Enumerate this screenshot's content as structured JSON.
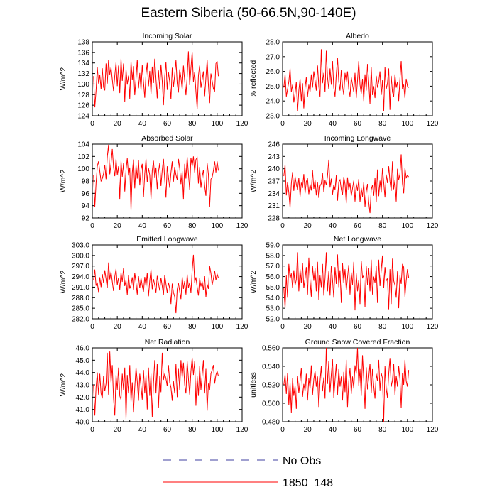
{
  "title": "Eastern Siberia (50-66.5N,90-140E)",
  "colors": {
    "obs": "#4040a0",
    "model": "#ff0000",
    "axis": "#000000"
  },
  "legend": [
    {
      "label": "No Obs",
      "style": "dashed",
      "color": "#4040a0"
    },
    {
      "label": "1850_148",
      "style": "solid",
      "color": "#ff0000"
    }
  ],
  "chart_data": [
    {
      "type": "line",
      "title": "Incoming Solar",
      "ylabel": "W/m^2",
      "xlim": [
        0,
        120
      ],
      "xticks": [
        0,
        20,
        40,
        60,
        80,
        100,
        120
      ],
      "ylim": [
        124,
        138
      ],
      "yticks": [
        "124",
        "126",
        "128",
        "130",
        "132",
        "134",
        "136",
        "138"
      ],
      "series": [
        {
          "name": "1850_148",
          "values": [
            131.5,
            125.6,
            128.7,
            133.2,
            130.1,
            131.8,
            129.0,
            133.0,
            129.4,
            128.8,
            133.9,
            130.1,
            134.6,
            131.8,
            133.2,
            130.9,
            128.7,
            131.6,
            134.1,
            129.6,
            133.5,
            128.3,
            134.8,
            130.6,
            133.9,
            126.7,
            132.8,
            129.9,
            131.6,
            127.2,
            134.3,
            130.8,
            133.4,
            127.9,
            131.0,
            134.6,
            129.2,
            132.1,
            128.8,
            133.6,
            130.4,
            127.4,
            131.9,
            134.0,
            129.6,
            132.5,
            128.1,
            133.3,
            130.2,
            134.8,
            131.0,
            127.3,
            132.6,
            129.1,
            133.7,
            130.6,
            126.0,
            131.4,
            134.2,
            128.9,
            132.3,
            130.4,
            127.1,
            133.1,
            129.4,
            131.8,
            134.5,
            130.1,
            128.4,
            132.8,
            131.2,
            129.0,
            133.5,
            130.6,
            127.9,
            131.4,
            136.2,
            129.8,
            133.0,
            136.1,
            130.4,
            132.3,
            128.6,
            125.3,
            131.6,
            133.5,
            129.3,
            130.9,
            132.4,
            127.7,
            131.2,
            134.6,
            129.8,
            126.4,
            132.0,
            130.6,
            129.1,
            128.6,
            133.9,
            134.2,
            131.5
          ]
        }
      ]
    },
    {
      "type": "line",
      "title": "Albedo",
      "ylabel": "% reflected",
      "xlim": [
        0,
        120
      ],
      "xticks": [
        0,
        20,
        40,
        60,
        80,
        100,
        120
      ],
      "ylim": [
        23.0,
        28.0
      ],
      "yticks": [
        "23.0",
        "24.0",
        "25.0",
        "26.0",
        "27.0",
        "28.0"
      ],
      "series": [
        {
          "name": "1850_148",
          "values": [
            24.9,
            25.8,
            24.3,
            24.8,
            25.3,
            26.2,
            24.6,
            25.1,
            23.9,
            24.5,
            25.3,
            23.3,
            24.7,
            25.5,
            24.0,
            25.2,
            23.5,
            24.9,
            25.6,
            24.3,
            25.1,
            24.6,
            25.8,
            24.9,
            26.0,
            25.4,
            24.7,
            26.4,
            25.0,
            24.3,
            27.5,
            25.2,
            25.9,
            24.6,
            27.4,
            25.6,
            24.8,
            26.2,
            25.1,
            26.7,
            24.9,
            24.3,
            25.8,
            26.9,
            25.3,
            24.7,
            26.1,
            25.0,
            24.4,
            25.9,
            25.3,
            26.0,
            24.8,
            24.3,
            25.6,
            25.1,
            24.6,
            25.9,
            24.2,
            25.4,
            26.7,
            25.1,
            24.5,
            25.5,
            24.0,
            25.8,
            24.7,
            26.5,
            25.3,
            23.8,
            26.3,
            24.4,
            25.0,
            24.2,
            25.7,
            24.9,
            25.3,
            26.0,
            24.4,
            25.4,
            23.3,
            26.3,
            24.8,
            25.2,
            26.2,
            23.4,
            25.7,
            24.6,
            24.3,
            25.8,
            24.9,
            25.3,
            24.0,
            25.5,
            26.7,
            24.8,
            25.1,
            24.2,
            25.5,
            25.0,
            24.9
          ]
        }
      ]
    },
    {
      "type": "line",
      "title": "Absorbed Solar",
      "ylabel": "W/m^2",
      "xlim": [
        0,
        120
      ],
      "xticks": [
        0,
        20,
        40,
        60,
        80,
        100,
        120
      ],
      "ylim": [
        92,
        104
      ],
      "yticks": [
        "92",
        "94",
        "96",
        "98",
        "100",
        "102",
        "104"
      ],
      "series": [
        {
          "name": "1850_148",
          "values": [
            99.0,
            93.8,
            97.6,
            100.4,
            101.2,
            99.6,
            98.0,
            98.4,
            99.2,
            100.6,
            98.3,
            101.9,
            103.9,
            99.1,
            100.8,
            103.2,
            100.3,
            98.8,
            101.6,
            99.0,
            100.4,
            95.1,
            101.3,
            98.7,
            100.9,
            96.3,
            99.8,
            101.7,
            98.9,
            100.2,
            93.2,
            99.4,
            101.5,
            96.8,
            100.6,
            98.4,
            101.4,
            97.3,
            99.9,
            100.8,
            95.4,
            99.2,
            101.6,
            97.8,
            100.1,
            99.0,
            95.1,
            99.7,
            101.3,
            98.6,
            100.2,
            96.7,
            99.5,
            100.9,
            97.2,
            99.8,
            101.6,
            98.3,
            95.3,
            100.4,
            98.6,
            96.9,
            99.4,
            101.2,
            97.9,
            100.3,
            99.0,
            98.2,
            101.6,
            100.1,
            97.5,
            99.6,
            95.1,
            100.8,
            98.4,
            101.9,
            99.2,
            96.6,
            101.8,
            100.4,
            102.0,
            99.4,
            101.5,
            101.8,
            97.6,
            100.3,
            96.9,
            98.7,
            99.8,
            97.2,
            95.6,
            100.9,
            99.1,
            93.8,
            98.3,
            98.6,
            99.7,
            101.2,
            99.4,
            101.2,
            99.7
          ]
        }
      ]
    },
    {
      "type": "line",
      "title": "Incoming Longwave",
      "ylabel": "W/m^2",
      "xlim": [
        0,
        120
      ],
      "xticks": [
        0,
        20,
        40,
        60,
        80,
        100,
        120
      ],
      "ylim": [
        228,
        246
      ],
      "yticks": [
        "228",
        "231",
        "234",
        "237",
        "240",
        "243",
        "246"
      ],
      "series": [
        {
          "name": "1850_148",
          "values": [
            238.2,
            241.0,
            233.5,
            236.8,
            234.2,
            230.5,
            236.4,
            239.2,
            234.6,
            238.1,
            236.2,
            234.9,
            237.8,
            233.2,
            236.6,
            235.3,
            238.7,
            234.0,
            236.9,
            237.5,
            233.8,
            236.2,
            234.7,
            239.6,
            235.1,
            237.3,
            233.5,
            236.7,
            232.9,
            235.8,
            236.4,
            238.9,
            234.3,
            237.2,
            236.0,
            238.3,
            242.2,
            235.4,
            237.6,
            233.7,
            236.1,
            234.9,
            238.4,
            232.2,
            236.8,
            237.3,
            235.0,
            233.6,
            238.0,
            236.3,
            231.6,
            237.9,
            234.8,
            236.5,
            233.4,
            235.2,
            237.1,
            232.0,
            236.4,
            234.6,
            237.5,
            231.9,
            235.3,
            233.2,
            236.7,
            230.7,
            234.4,
            236.3,
            231.7,
            229.2,
            234.9,
            236.0,
            233.4,
            237.8,
            231.8,
            239.8,
            233.3,
            237.1,
            234.2,
            240.1,
            236.7,
            233.0,
            238.6,
            236.5,
            240.6,
            236.9,
            234.6,
            241.8,
            235.0,
            237.2,
            232.0,
            240.0,
            237.3,
            238.7,
            243.5,
            236.4,
            234.0,
            240.2,
            237.8,
            238.4,
            238.0
          ]
        }
      ]
    },
    {
      "type": "line",
      "title": "Emitted Longwave",
      "ylabel": "W/m^2",
      "xlim": [
        0,
        120
      ],
      "xticks": [
        0,
        20,
        40,
        60,
        80,
        100,
        120
      ],
      "ylim": [
        282.0,
        303.0
      ],
      "yticks": [
        "282.0",
        "285.0",
        "288.0",
        "291.0",
        "294.0",
        "297.0",
        "300.0",
        "303.0"
      ],
      "series": [
        {
          "name": "1850_148",
          "values": [
            293.1,
            296.0,
            291.4,
            292.3,
            289.6,
            293.8,
            291.0,
            294.7,
            292.2,
            295.8,
            293.3,
            290.7,
            298.0,
            293.2,
            295.4,
            292.6,
            289.9,
            294.0,
            296.2,
            291.6,
            293.7,
            290.2,
            295.2,
            292.5,
            296.4,
            291.3,
            293.0,
            288.8,
            294.4,
            290.6,
            291.6,
            293.8,
            290.3,
            295.0,
            292.3,
            288.9,
            294.1,
            290.7,
            293.6,
            291.4,
            289.7,
            293.9,
            291.2,
            295.1,
            288.4,
            292.8,
            296.0,
            290.4,
            293.3,
            291.6,
            289.5,
            294.2,
            292.1,
            290.0,
            293.7,
            291.3,
            288.8,
            294.5,
            291.9,
            289.4,
            292.3,
            290.6,
            286.2,
            292.0,
            289.5,
            288.3,
            283.6,
            290.4,
            292.1,
            289.8,
            287.6,
            293.9,
            290.5,
            292.7,
            288.9,
            294.6,
            290.8,
            292.3,
            289.4,
            295.8,
            300.2,
            292.3,
            293.8,
            291.0,
            288.6,
            293.5,
            291.2,
            292.6,
            290.1,
            294.1,
            288.2,
            291.8,
            290.5,
            297.0,
            295.0,
            291.6,
            293.4,
            295.7,
            293.0,
            294.7,
            293.6
          ]
        }
      ]
    },
    {
      "type": "line",
      "title": "Net Longwave",
      "ylabel": "W/m^2",
      "xlim": [
        0,
        120
      ],
      "xticks": [
        0,
        20,
        40,
        60,
        80,
        100,
        120
      ],
      "ylim": [
        52.0,
        59.0
      ],
      "yticks": [
        "52.0",
        "53.0",
        "54.0",
        "55.0",
        "56.0",
        "57.0",
        "58.0",
        "59.0"
      ],
      "series": [
        {
          "name": "1850_148",
          "values": [
            54.9,
            53.0,
            56.1,
            54.0,
            57.2,
            55.8,
            56.3,
            54.9,
            56.6,
            55.2,
            55.7,
            58.3,
            54.6,
            56.7,
            55.4,
            57.3,
            54.9,
            55.8,
            56.9,
            54.3,
            57.8,
            55.6,
            54.1,
            57.0,
            55.6,
            56.8,
            54.6,
            57.4,
            53.8,
            56.1,
            55.0,
            57.2,
            54.2,
            55.8,
            58.3,
            54.6,
            56.5,
            54.2,
            57.0,
            55.7,
            54.0,
            56.9,
            55.3,
            58.1,
            55.0,
            56.6,
            53.5,
            57.3,
            55.4,
            56.7,
            54.7,
            55.9,
            57.1,
            54.3,
            56.4,
            55.2,
            57.4,
            52.8,
            56.3,
            54.6,
            55.7,
            53.4,
            57.5,
            55.9,
            56.1,
            53.1,
            57.0,
            55.2,
            56.8,
            54.6,
            57.6,
            54.3,
            56.0,
            55.4,
            57.0,
            53.5,
            57.6,
            55.1,
            56.6,
            58.0,
            54.9,
            56.9,
            55.6,
            55.8,
            52.9,
            56.7,
            53.4,
            57.7,
            55.6,
            55.2,
            54.0,
            56.5,
            53.0,
            56.1,
            55.3,
            57.2,
            56.9,
            54.1,
            55.6,
            56.7,
            55.9
          ]
        }
      ]
    },
    {
      "type": "line",
      "title": "Net Radiation",
      "ylabel": "W/m^2",
      "xlim": [
        0,
        120
      ],
      "xticks": [
        0,
        20,
        40,
        60,
        80,
        100,
        120
      ],
      "ylim": [
        40.0,
        46.0
      ],
      "yticks": [
        "40.0",
        "41.0",
        "42.0",
        "43.0",
        "44.0",
        "45.0",
        "46.0"
      ],
      "series": [
        {
          "name": "1850_148",
          "values": [
            43.0,
            40.5,
            42.8,
            44.0,
            42.2,
            43.9,
            42.3,
            41.9,
            43.7,
            42.5,
            43.1,
            45.6,
            42.2,
            45.7,
            43.2,
            44.6,
            41.9,
            40.5,
            43.8,
            42.6,
            44.4,
            42.1,
            41.8,
            43.9,
            42.6,
            44.4,
            40.2,
            43.8,
            42.3,
            44.6,
            41.6,
            43.2,
            40.8,
            42.8,
            44.4,
            43.3,
            41.7,
            43.9,
            42.9,
            41.8,
            44.2,
            42.3,
            43.8,
            41.0,
            44.4,
            42.1,
            43.9,
            40.4,
            43.1,
            45.0,
            42.3,
            44.7,
            41.1,
            43.7,
            42.4,
            45.6,
            43.4,
            43.9,
            43.5,
            42.9,
            44.6,
            43.2,
            42.8,
            41.7,
            43.3,
            42.3,
            44.7,
            42.0,
            44.3,
            42.6,
            45.0,
            43.6,
            44.8,
            43.0,
            42.3,
            44.9,
            43.5,
            42.2,
            44.1,
            45.2,
            43.8,
            44.9,
            41.3,
            43.7,
            42.1,
            44.5,
            42.6,
            43.8,
            45.0,
            42.3,
            44.3,
            40.9,
            43.1,
            42.6,
            43.9,
            44.2,
            44.6,
            43.1,
            43.8,
            44.1,
            43.7
          ]
        }
      ]
    },
    {
      "type": "line",
      "title": "Ground Snow Covered Fraction",
      "ylabel": "unitless",
      "xlim": [
        0,
        120
      ],
      "xticks": [
        0,
        20,
        40,
        60,
        80,
        100,
        120
      ],
      "ylim": [
        0.48,
        0.56
      ],
      "yticks": [
        "0.480",
        "0.500",
        "0.520",
        "0.540",
        "0.560"
      ],
      "series": [
        {
          "name": "1850_148",
          "values": [
            0.52,
            0.531,
            0.51,
            0.533,
            0.498,
            0.522,
            0.49,
            0.527,
            0.508,
            0.519,
            0.494,
            0.53,
            0.511,
            0.524,
            0.538,
            0.507,
            0.521,
            0.513,
            0.532,
            0.503,
            0.527,
            0.516,
            0.541,
            0.509,
            0.526,
            0.535,
            0.518,
            0.529,
            0.496,
            0.524,
            0.54,
            0.513,
            0.528,
            0.505,
            0.56,
            0.521,
            0.546,
            0.512,
            0.531,
            0.548,
            0.506,
            0.525,
            0.543,
            0.509,
            0.537,
            0.518,
            0.529,
            0.503,
            0.534,
            0.512,
            0.547,
            0.496,
            0.524,
            0.538,
            0.51,
            0.529,
            0.516,
            0.541,
            0.532,
            0.56,
            0.519,
            0.537,
            0.508,
            0.552,
            0.526,
            0.494,
            0.539,
            0.515,
            0.528,
            0.543,
            0.511,
            0.537,
            0.519,
            0.505,
            0.532,
            0.524,
            0.547,
            0.514,
            0.533,
            0.527,
            0.48,
            0.54,
            0.516,
            0.506,
            0.532,
            0.549,
            0.518,
            0.525,
            0.543,
            0.509,
            0.53,
            0.518,
            0.54,
            0.526,
            0.495,
            0.533,
            0.52,
            0.547,
            0.524,
            0.518,
            0.536
          ]
        }
      ]
    }
  ]
}
